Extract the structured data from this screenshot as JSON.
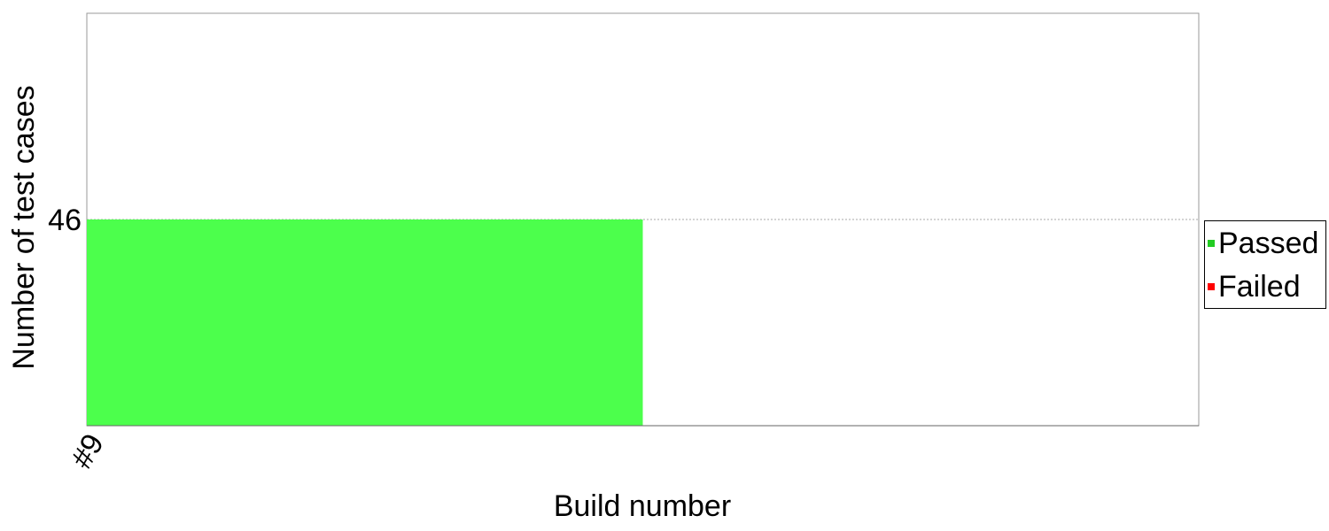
{
  "chart_data": {
    "type": "area",
    "x": [
      "#9"
    ],
    "series": [
      {
        "name": "Passed",
        "color": "#4cff4c",
        "swatch_color": "#22cc22",
        "values": [
          46
        ]
      },
      {
        "name": "Failed",
        "color": "#ff0000",
        "swatch_color": "#ff0000",
        "values": [
          0
        ]
      }
    ],
    "xlabel": "Build number",
    "ylabel": "Number of test cases",
    "yticks": [
      46
    ],
    "ylim": [
      0,
      92
    ],
    "grid": "horizontal dotted at ticks",
    "legend_position": "right"
  }
}
